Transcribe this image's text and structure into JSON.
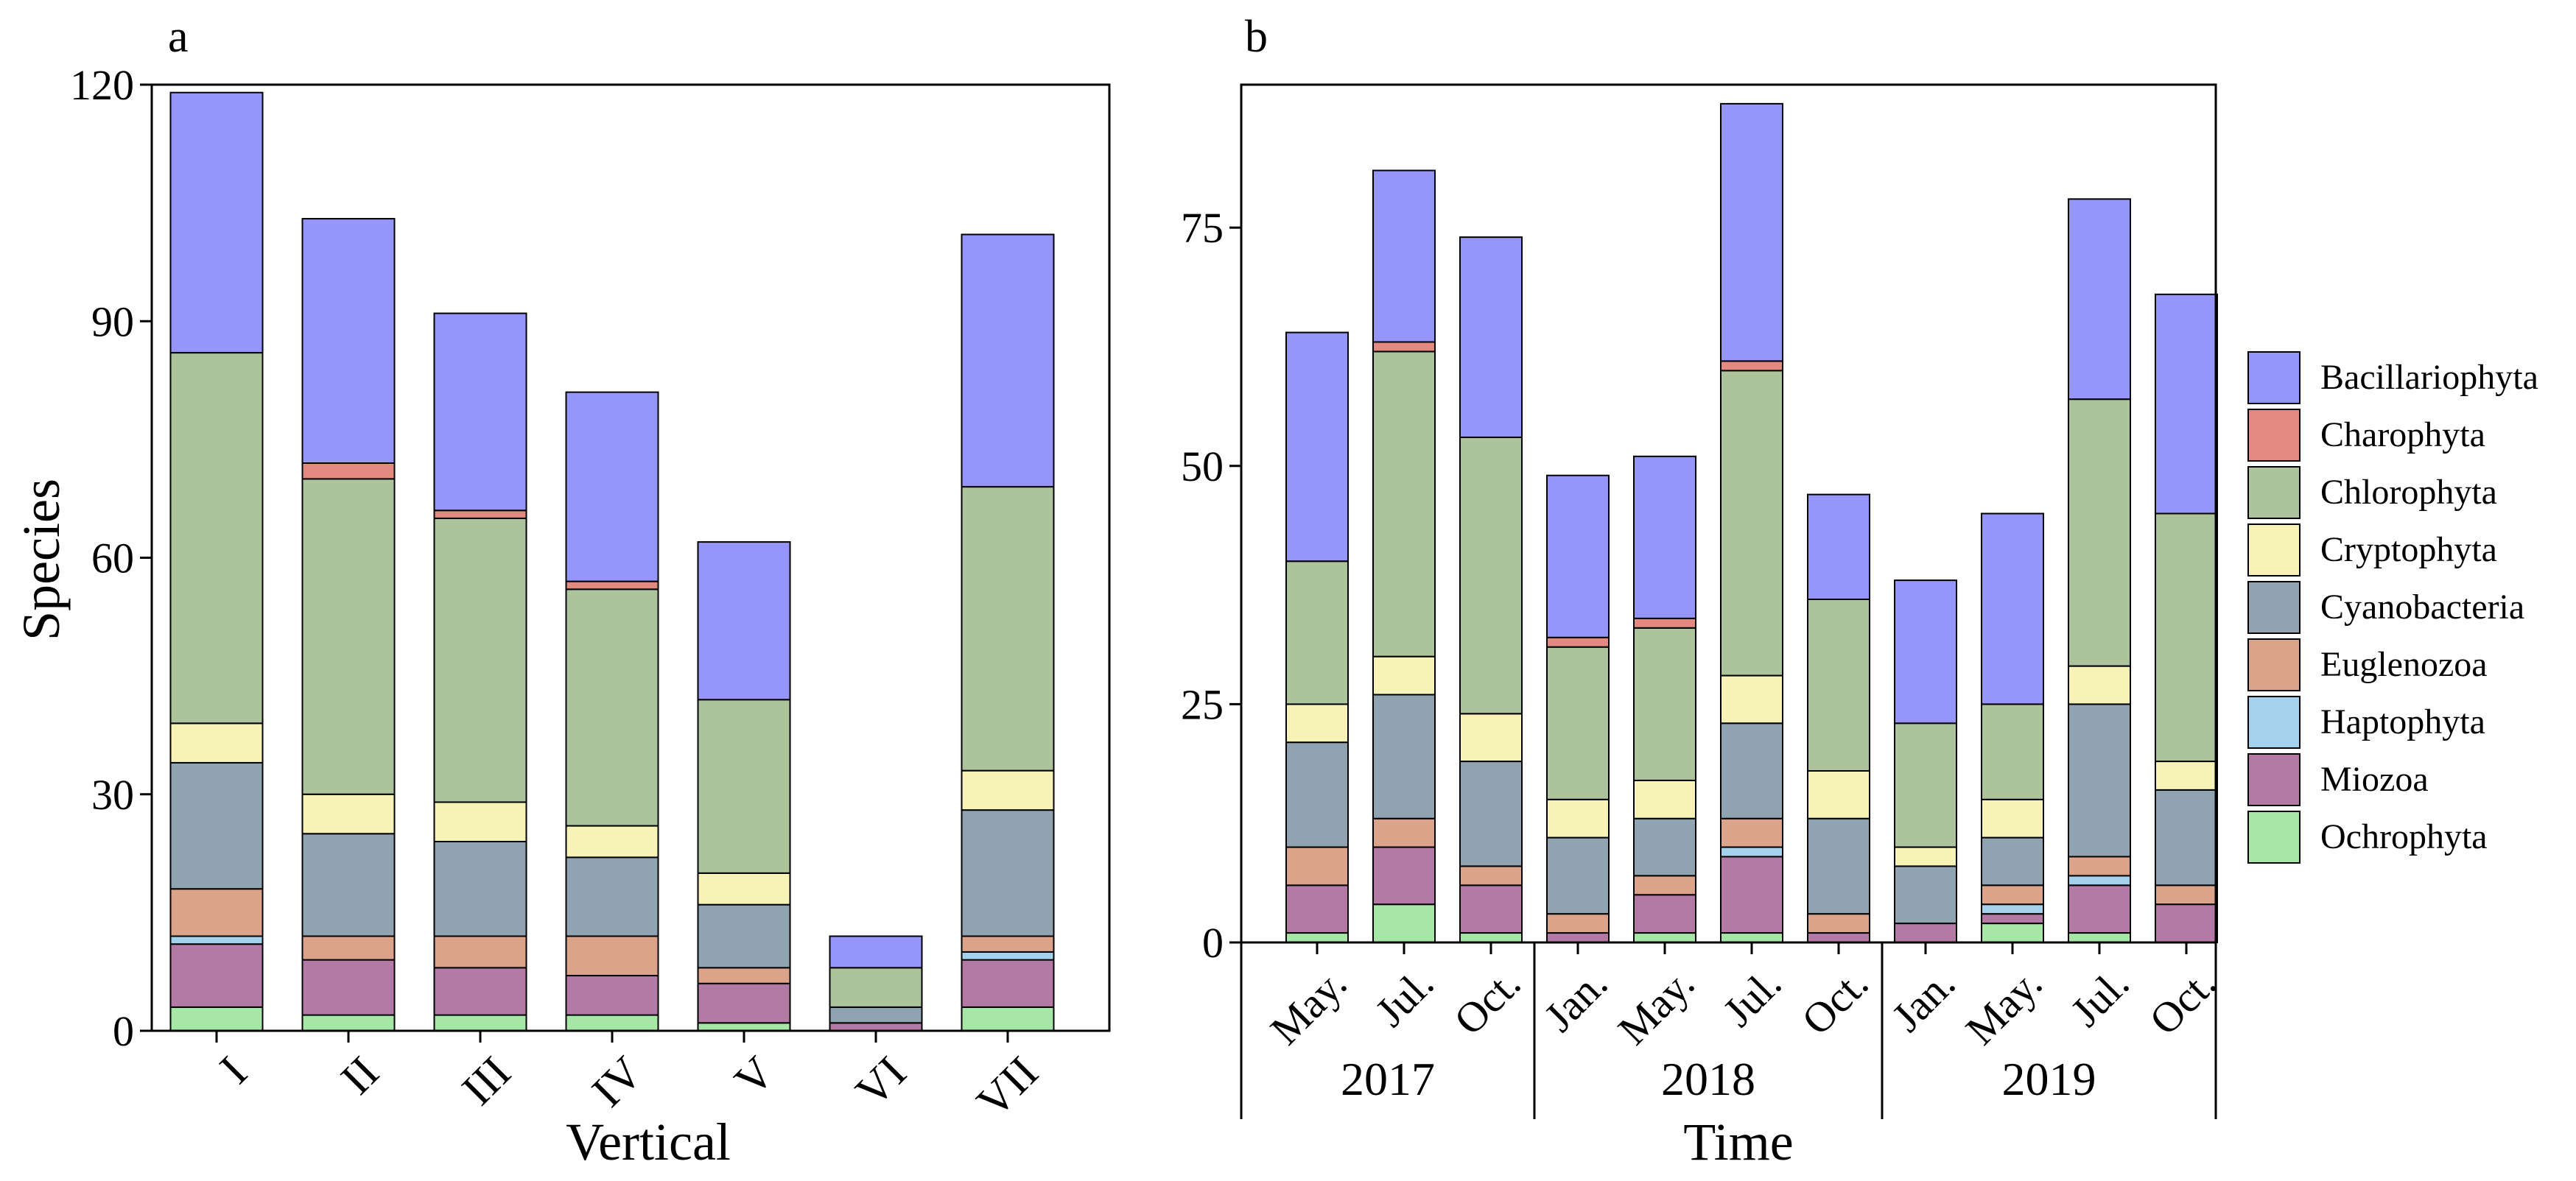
{
  "chart_data": [
    {
      "type": "bar",
      "stacked": true,
      "panel_label": "a",
      "xlabel": "Vertical",
      "ylabel": "Species",
      "ylim": [
        0,
        120
      ],
      "yticks": [
        0,
        30,
        60,
        90,
        120
      ],
      "categories": [
        "I",
        "II",
        "III",
        "IV",
        "V",
        "VI",
        "VII"
      ],
      "series": [
        {
          "name": "Ochrophyta",
          "values": [
            3,
            2,
            2,
            2,
            1,
            0,
            3
          ]
        },
        {
          "name": "Miozoa",
          "values": [
            8,
            7,
            6,
            5,
            5,
            1,
            6
          ]
        },
        {
          "name": "Haptophyta",
          "values": [
            1,
            0,
            0,
            0,
            0,
            0,
            1
          ]
        },
        {
          "name": "Euglenozoa",
          "values": [
            6,
            3,
            4,
            5,
            2,
            0,
            2
          ]
        },
        {
          "name": "Cyanobacteria",
          "values": [
            16,
            13,
            12,
            10,
            8,
            2,
            16
          ]
        },
        {
          "name": "Cryptophyta",
          "values": [
            5,
            5,
            5,
            4,
            4,
            0,
            5
          ]
        },
        {
          "name": "Chlorophyta",
          "values": [
            47,
            40,
            36,
            30,
            22,
            5,
            36
          ]
        },
        {
          "name": "Charophyta",
          "values": [
            0,
            2,
            1,
            1,
            0,
            0,
            0
          ]
        },
        {
          "name": "Bacillariophyta",
          "values": [
            33,
            31,
            25,
            24,
            20,
            4,
            32
          ]
        }
      ]
    },
    {
      "type": "bar",
      "stacked": true,
      "panel_label": "b",
      "xlabel": "Time",
      "ylabel": "",
      "ylim": [
        0,
        90
      ],
      "yticks": [
        0,
        25,
        50,
        75
      ],
      "categories": [
        "May.",
        "Jul.",
        "Oct.",
        "Jan.",
        "May.",
        "Jul.",
        "Oct.",
        "Jan.",
        "May.",
        "Jul.",
        "Oct."
      ],
      "year_groups": [
        {
          "label": "2017",
          "count": 3
        },
        {
          "label": "2018",
          "count": 4
        },
        {
          "label": "2019",
          "count": 4
        }
      ],
      "series": [
        {
          "name": "Ochrophyta",
          "values": [
            1,
            4,
            1,
            0,
            1,
            1,
            0,
            0,
            2,
            1,
            0
          ]
        },
        {
          "name": "Miozoa",
          "values": [
            5,
            6,
            5,
            1,
            4,
            8,
            1,
            2,
            1,
            5,
            4
          ]
        },
        {
          "name": "Haptophyta",
          "values": [
            0,
            0,
            0,
            0,
            0,
            1,
            0,
            0,
            1,
            1,
            0
          ]
        },
        {
          "name": "Euglenozoa",
          "values": [
            4,
            3,
            2,
            2,
            2,
            3,
            2,
            0,
            2,
            2,
            2
          ]
        },
        {
          "name": "Cyanobacteria",
          "values": [
            11,
            13,
            11,
            8,
            6,
            10,
            10,
            6,
            5,
            16,
            10
          ]
        },
        {
          "name": "Cryptophyta",
          "values": [
            4,
            4,
            5,
            4,
            4,
            5,
            5,
            2,
            4,
            4,
            3
          ]
        },
        {
          "name": "Chlorophyta",
          "values": [
            15,
            32,
            29,
            16,
            16,
            32,
            18,
            13,
            10,
            28,
            26
          ]
        },
        {
          "name": "Charophyta",
          "values": [
            0,
            1,
            0,
            1,
            1,
            1,
            0,
            0,
            0,
            0,
            0
          ]
        },
        {
          "name": "Bacillariophyta",
          "values": [
            24,
            18,
            21,
            17,
            17,
            27,
            11,
            15,
            20,
            21,
            23
          ]
        }
      ]
    }
  ],
  "legend": {
    "position": "right",
    "items": [
      {
        "name": "Bacillariophyta",
        "color": "#9595FA"
      },
      {
        "name": "Charophyta",
        "color": "#E28A80"
      },
      {
        "name": "Chlorophyta",
        "color": "#ACC39B"
      },
      {
        "name": "Cryptophyta",
        "color": "#F7F3B6"
      },
      {
        "name": "Cyanobacteria",
        "color": "#8FA3B1"
      },
      {
        "name": "Euglenozoa",
        "color": "#DCA38B"
      },
      {
        "name": "Haptophyta",
        "color": "#A4D2EC"
      },
      {
        "name": "Miozoa",
        "color": "#B47AA6"
      },
      {
        "name": "Ochrophyta",
        "color": "#A6E6A6"
      }
    ]
  }
}
